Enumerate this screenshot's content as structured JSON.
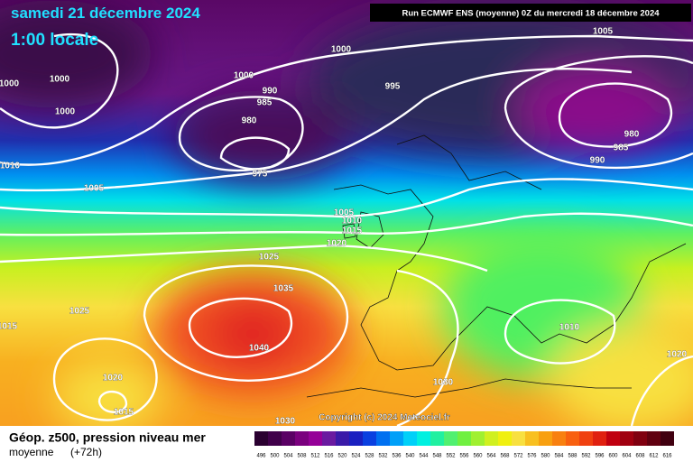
{
  "header": {
    "date": "samedi 21 décembre 2024",
    "time": "1:00 locale",
    "run": "Run ECMWF ENS (moyenne) 0Z du mercredi 18 décembre 2024"
  },
  "isobar_labels": [
    "1005",
    "1000",
    "1000",
    "1000",
    "1000",
    "995",
    "990",
    "985",
    "1000",
    "980",
    "980",
    "985",
    "990",
    "1010",
    "975",
    "1005",
    "1005",
    "1010",
    "1015",
    "1020",
    "1025",
    "1035",
    "1025",
    "1015",
    "1010",
    "1040",
    "1020",
    "1020",
    "1030",
    "1015",
    "1030"
  ],
  "footer": {
    "title": "Géop. z500, pression niveau mer",
    "mode": "moyenne",
    "lead": "(+72h)",
    "copyright": "Copyright (c) 2024 Meteociel.fr"
  },
  "color_scale": {
    "values": [
      496,
      500,
      504,
      508,
      512,
      516,
      520,
      524,
      528,
      532,
      536,
      540,
      544,
      548,
      552,
      556,
      560,
      564,
      568,
      572,
      576,
      580,
      584,
      588,
      592,
      596,
      600,
      604,
      608,
      612,
      616
    ],
    "colors": [
      "#2a0030",
      "#40004a",
      "#5a0064",
      "#7a007e",
      "#950098",
      "#6a1aa0",
      "#3a1aa8",
      "#1a20c0",
      "#0a40e0",
      "#0070f0",
      "#00a0f8",
      "#00d0f8",
      "#00f0e0",
      "#20f0a0",
      "#50f070",
      "#70f040",
      "#a0f030",
      "#d0f020",
      "#f0f010",
      "#f8e040",
      "#f8c020",
      "#f8a010",
      "#f88010",
      "#f86010",
      "#f04010",
      "#e02010",
      "#c00010",
      "#a00010",
      "#800010",
      "#600010",
      "#400010"
    ]
  }
}
